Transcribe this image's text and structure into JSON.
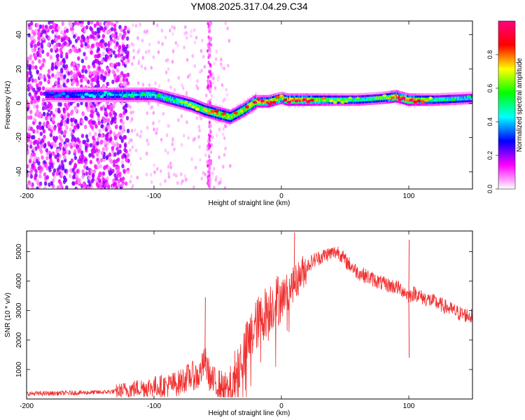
{
  "figure": {
    "title": "YM08.2025.317.04.29.C34"
  },
  "chart_data": [
    {
      "type": "heatmap",
      "xlabel": "Height of straight line (km)",
      "ylabel": "Frequency (Hz)",
      "xlim": [
        -200,
        150
      ],
      "ylim": [
        -50,
        48
      ],
      "xticks": [
        -200,
        -100,
        0,
        100
      ],
      "yticks": [
        -40,
        -20,
        0,
        20,
        40
      ],
      "grid": false,
      "colorbar": {
        "label": "Normalized spectral amplitude",
        "range": [
          0,
          1
        ],
        "ticks": [
          "0.0",
          "0.2",
          "0.4",
          "0.6",
          "0.8"
        ],
        "colormap": [
          "#ffffff",
          "#ff00ff",
          "#0000ff",
          "#00ffff",
          "#00ff00",
          "#ffff00",
          "#ff0000",
          "#ff0080"
        ]
      },
      "ridge": {
        "x": [
          -180,
          -160,
          -140,
          -120,
          -100,
          -90,
          -80,
          -70,
          -60,
          -50,
          -40,
          -30,
          -20,
          -10,
          0,
          5,
          10,
          20,
          40,
          60,
          80,
          90,
          100,
          120,
          150
        ],
        "frequency": [
          5,
          5,
          5,
          5,
          5,
          3,
          1,
          -1,
          -4,
          -6,
          -8,
          -4,
          1,
          1,
          3,
          2,
          2,
          2,
          2,
          2,
          3,
          4,
          2,
          2,
          3
        ],
        "amplitude": [
          0.3,
          0.35,
          0.4,
          0.45,
          0.5,
          0.5,
          0.55,
          0.6,
          0.65,
          0.75,
          0.7,
          0.75,
          0.85,
          0.85,
          0.65,
          0.9,
          0.9,
          0.85,
          0.6,
          0.55,
          0.55,
          0.95,
          0.9,
          0.55,
          0.45
        ]
      }
    },
    {
      "type": "line",
      "xlabel": "Height of straight line (km)",
      "ylabel": "SNR (10 * v/v)",
      "xlim": [
        -200,
        150
      ],
      "ylim": [
        0,
        5700
      ],
      "xticks": [
        -200,
        -100,
        0,
        100
      ],
      "yticks": [
        1000,
        2000,
        3000,
        4000,
        5000
      ],
      "grid": false,
      "series": [
        {
          "color": "#f03030",
          "x": [
            -200,
            -180,
            -160,
            -140,
            -130,
            -120,
            -110,
            -100,
            -90,
            -80,
            -75,
            -70,
            -65,
            -60,
            -55,
            -50,
            -45,
            -40,
            -35,
            -30,
            -25,
            -20,
            -15,
            -10,
            -5,
            0,
            5,
            10,
            15,
            20,
            25,
            30,
            35,
            40,
            45,
            50,
            55,
            60,
            70,
            80,
            90,
            95,
            100,
            105,
            110,
            120,
            130,
            140,
            150
          ],
          "y": [
            180,
            190,
            210,
            230,
            260,
            320,
            380,
            420,
            450,
            550,
            700,
            800,
            750,
            1300,
            600,
            500,
            350,
            300,
            1000,
            1500,
            2000,
            2500,
            2800,
            3100,
            3300,
            3500,
            3700,
            3900,
            4200,
            4500,
            4700,
            4800,
            4900,
            4950,
            5000,
            4700,
            4500,
            4300,
            4100,
            3900,
            3800,
            3700,
            3500,
            3600,
            3450,
            3300,
            3100,
            2900,
            2800
          ]
        }
      ],
      "annotations": [
        {
          "x": -60,
          "y": 3450,
          "text": ""
        },
        {
          "x": 10,
          "y": 5650,
          "text": ""
        },
        {
          "x": 100,
          "y": 5400,
          "text": ""
        },
        {
          "x": 100,
          "y": 1400,
          "text": ""
        }
      ]
    }
  ]
}
